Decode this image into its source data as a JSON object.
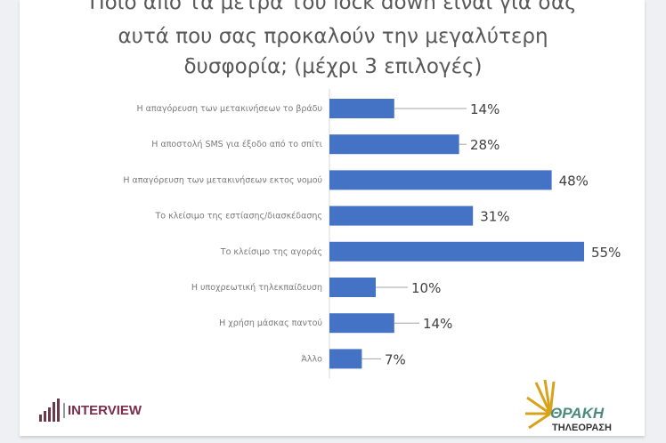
{
  "chart_data": {
    "type": "bar",
    "orientation": "horizontal",
    "title_lines": [
      "Ποιο από τα μέτρα του lock down είναι για σας",
      "αυτά που σας προκαλούν την μεγαλύτερη",
      "δυσφορία; (μέχρι 3 επιλογές)"
    ],
    "categories": [
      "Η απαγόρευση των μετακινήσεων το βράδυ",
      "Η αποστολή SMS για έξοδο από το σπίτι",
      "Η απαγόρευση των μετακινήσεων εκτος νομού",
      "Το κλείσιμο της εστίασης/διασκέδασης",
      "Το κλείσιμο της αγοράς",
      "Η υποχρεωτική τηλεκπαίδευση",
      "Η χρήση μάσκας παντού",
      "Άλλο"
    ],
    "values": [
      14,
      28,
      48,
      31,
      55,
      10,
      14,
      7
    ],
    "data_labels": [
      "14%",
      "28%",
      "48%",
      "31%",
      "55%",
      "10%",
      "14%",
      "7%"
    ],
    "unit": "%",
    "bar_color": "#4472c4",
    "grid": false,
    "legend": "none"
  },
  "logos": {
    "left": "INTERVIEW",
    "right_name": "ΘΡΑΚΗ",
    "right_sub": "ΤΗΛΕΟΡΑΣΗ"
  }
}
